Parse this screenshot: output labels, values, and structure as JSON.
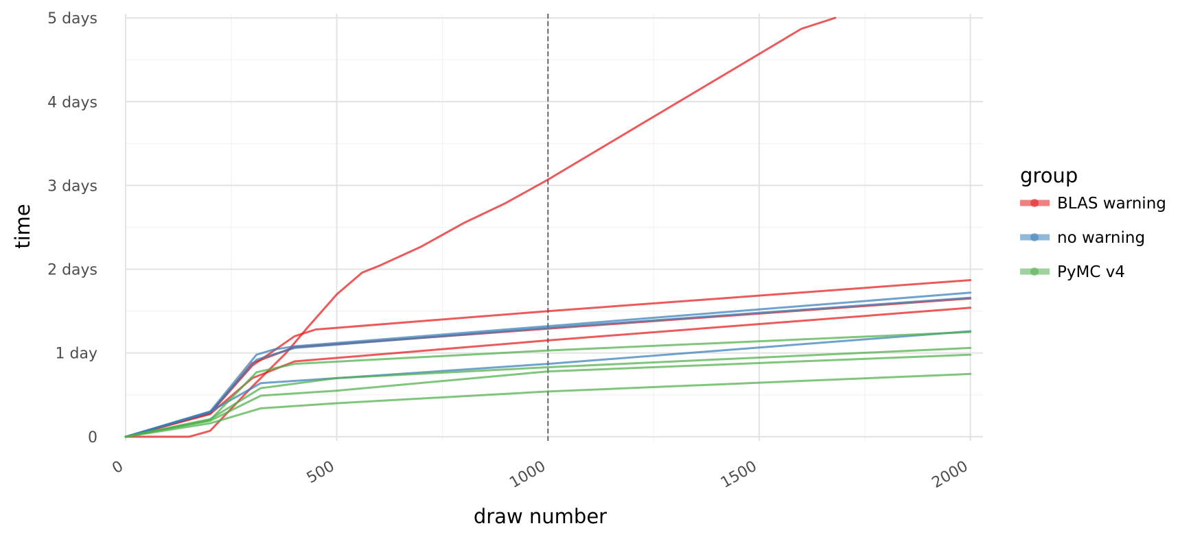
{
  "chart_data": {
    "type": "line",
    "xlabel": "draw number",
    "ylabel": "time",
    "xlim": [
      0,
      2030
    ],
    "ylim": [
      -0.05,
      5.05
    ],
    "x_ticks": [
      0,
      500,
      1000,
      1500,
      2000
    ],
    "x_tick_labels": [
      "0",
      "500",
      "1000",
      "1500",
      "2000"
    ],
    "y_ticks": [
      0,
      1,
      2,
      3,
      4,
      5
    ],
    "y_tick_labels": [
      "0",
      "1 day",
      "2 days",
      "3 days",
      "4 days",
      "5 days"
    ],
    "grid": true,
    "vline": {
      "x": 1000,
      "style": "dashed"
    },
    "legend": {
      "title": "group",
      "placement": "right",
      "entries": [
        {
          "label": "BLAS warning",
          "color": "#e41a1c"
        },
        {
          "label": "no warning",
          "color": "#377eb8"
        },
        {
          "label": "PyMC v4",
          "color": "#4daf4a"
        }
      ]
    },
    "series": [
      {
        "group": "BLAS warning",
        "color": "#e41a1c",
        "x": [
          0,
          150,
          200,
          300,
          380,
          430,
          500,
          560,
          600,
          700,
          800,
          900,
          950,
          1000,
          1200,
          1400,
          1600,
          1680
        ],
        "y": [
          0,
          0,
          0.07,
          0.6,
          1.0,
          1.3,
          1.7,
          1.96,
          2.04,
          2.27,
          2.55,
          2.79,
          2.93,
          3.07,
          3.67,
          4.27,
          4.87,
          5.0
        ]
      },
      {
        "group": "BLAS warning",
        "color": "#e41a1c",
        "x": [
          0,
          200,
          300,
          400,
          450,
          1000,
          2000
        ],
        "y": [
          0,
          0.28,
          0.85,
          1.2,
          1.28,
          1.5,
          1.87
        ]
      },
      {
        "group": "BLAS warning",
        "color": "#e41a1c",
        "x": [
          0,
          200,
          300,
          400,
          1000,
          2000
        ],
        "y": [
          0,
          0.28,
          0.88,
          1.07,
          1.29,
          1.65
        ]
      },
      {
        "group": "BLAS warning",
        "color": "#e41a1c",
        "x": [
          0,
          200,
          300,
          400,
          1000,
          2000
        ],
        "y": [
          0,
          0.27,
          0.7,
          0.9,
          1.15,
          1.54
        ]
      },
      {
        "group": "no warning",
        "color": "#377eb8",
        "x": [
          0,
          200,
          310,
          350,
          400,
          1000,
          2000
        ],
        "y": [
          0,
          0.3,
          0.98,
          1.04,
          1.08,
          1.32,
          1.72
        ]
      },
      {
        "group": "no warning",
        "color": "#377eb8",
        "x": [
          0,
          200,
          310,
          400,
          1000,
          2000
        ],
        "y": [
          0,
          0.29,
          0.92,
          1.06,
          1.3,
          1.66
        ]
      },
      {
        "group": "no warning",
        "color": "#377eb8",
        "x": [
          0,
          200,
          320,
          500,
          1000,
          2000
        ],
        "y": [
          0,
          0.3,
          0.64,
          0.7,
          0.87,
          1.26
        ]
      },
      {
        "group": "PyMC v4",
        "color": "#4daf4a",
        "x": [
          0,
          200,
          310,
          400,
          1000,
          2000
        ],
        "y": [
          0,
          0.2,
          0.77,
          0.87,
          1.03,
          1.25
        ]
      },
      {
        "group": "PyMC v4",
        "color": "#4daf4a",
        "x": [
          0,
          200,
          320,
          500,
          1000,
          2000
        ],
        "y": [
          0,
          0.21,
          0.58,
          0.7,
          0.83,
          1.06
        ]
      },
      {
        "group": "PyMC v4",
        "color": "#4daf4a",
        "x": [
          0,
          200,
          320,
          500,
          1000,
          2000
        ],
        "y": [
          0,
          0.19,
          0.49,
          0.55,
          0.78,
          0.98
        ]
      },
      {
        "group": "PyMC v4",
        "color": "#4daf4a",
        "x": [
          0,
          200,
          320,
          500,
          1000,
          2000
        ],
        "y": [
          0,
          0.16,
          0.34,
          0.4,
          0.54,
          0.75
        ]
      }
    ]
  }
}
